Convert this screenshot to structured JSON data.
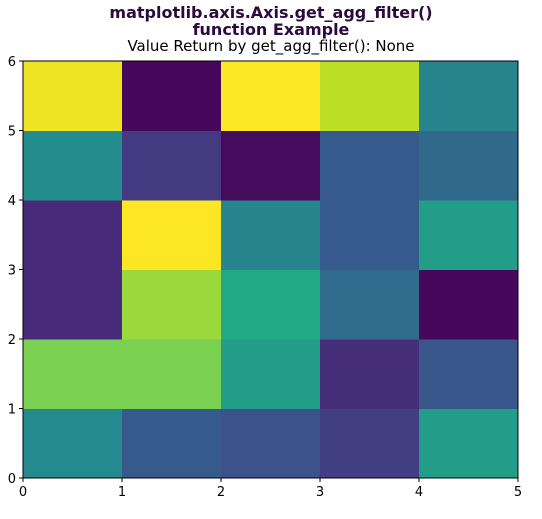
{
  "figure": {
    "suptitle_line1": "matplotlib.axis.Axis.get_agg_filter()",
    "suptitle_line2": "function Example",
    "title_color": "#2b0a3d"
  },
  "chart_data": {
    "type": "heatmap",
    "title": "Value Return by get_agg_filter(): None",
    "xlabel": "",
    "ylabel": "",
    "xlim": [
      0,
      5
    ],
    "ylim": [
      0,
      6
    ],
    "xticks": [
      "0",
      "1",
      "2",
      "3",
      "4",
      "5"
    ],
    "yticks": [
      "0",
      "1",
      "2",
      "3",
      "4",
      "5",
      "6"
    ],
    "colormap": "viridis",
    "grid": false,
    "rows_bottom_to_top": [
      [
        0.47,
        0.28,
        0.25,
        0.18,
        0.55
      ],
      [
        0.8,
        0.8,
        0.55,
        0.13,
        0.27
      ],
      [
        0.12,
        0.85,
        0.6,
        0.35,
        0.02
      ],
      [
        0.12,
        1.0,
        0.45,
        0.28,
        0.55
      ],
      [
        0.48,
        0.17,
        0.03,
        0.28,
        0.34
      ],
      [
        0.98,
        0.02,
        1.0,
        0.9,
        0.45
      ]
    ]
  }
}
